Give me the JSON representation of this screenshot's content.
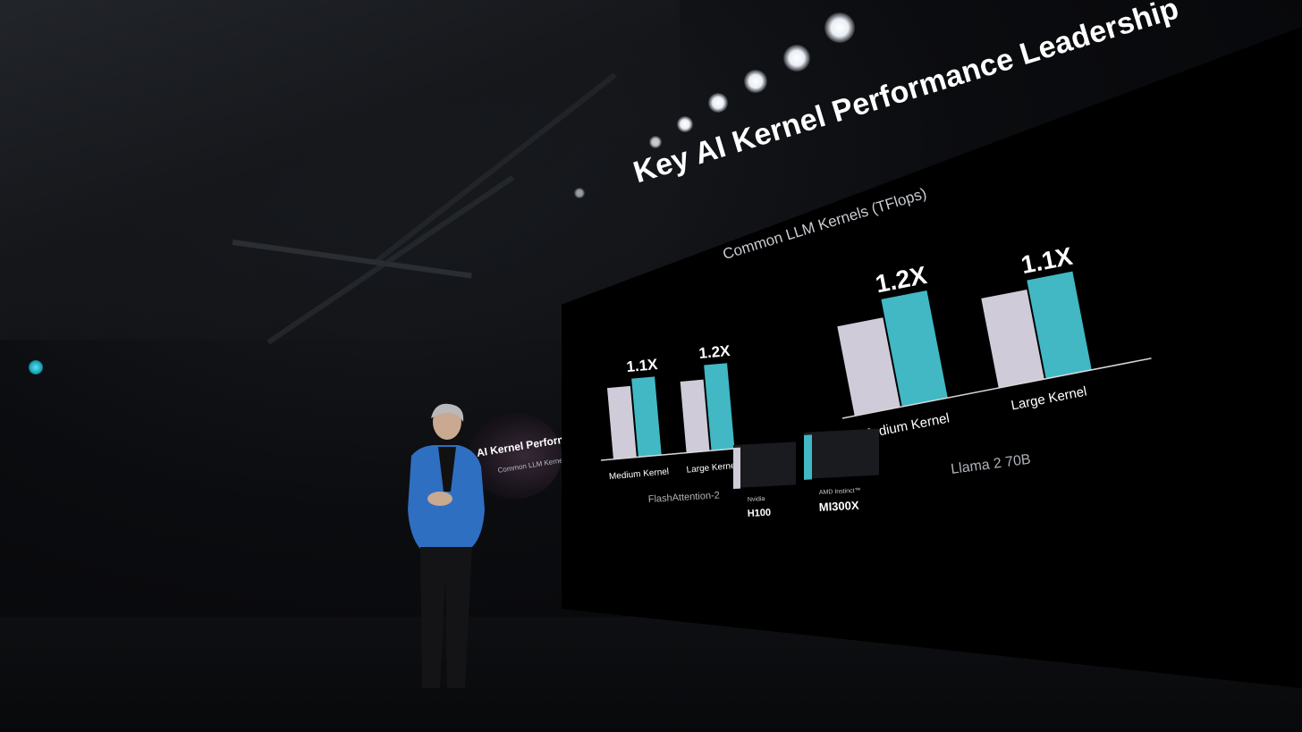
{
  "slide": {
    "title": "Key AI Kernel Performance Leadership",
    "subtitle": "Common LLM Kernels (TFlops)"
  },
  "mini_screen": {
    "title": "AI Kernel Performance L",
    "subtitle": "Common LLM Kernels (TFlops)"
  },
  "legend": {
    "nvidia_label": "Nvidia",
    "nvidia_model": "H100",
    "amd_label": "AMD Instinct™",
    "amd_model": "MI300X"
  },
  "colors": {
    "h100": "#cfcbd9",
    "mi300x": "#41b8c4"
  },
  "chart_data": [
    {
      "type": "bar",
      "group_label": "FlashAttention-2",
      "categories": [
        "Medium Kernel",
        "Large Kernel"
      ],
      "series": [
        {
          "name": "H100",
          "values": [
            1.0,
            1.0
          ]
        },
        {
          "name": "MI300X",
          "values": [
            1.1,
            1.2
          ]
        }
      ],
      "annotations": [
        "1.1X",
        "1.2X"
      ]
    },
    {
      "type": "bar",
      "group_label": "Llama 2 70B",
      "categories": [
        "Medium Kernel",
        "Large Kernel"
      ],
      "series": [
        {
          "name": "H100",
          "values": [
            1.0,
            1.0
          ]
        },
        {
          "name": "MI300X",
          "values": [
            1.2,
            1.1
          ]
        }
      ],
      "annotations": [
        "1.2X",
        "1.1X"
      ]
    }
  ]
}
